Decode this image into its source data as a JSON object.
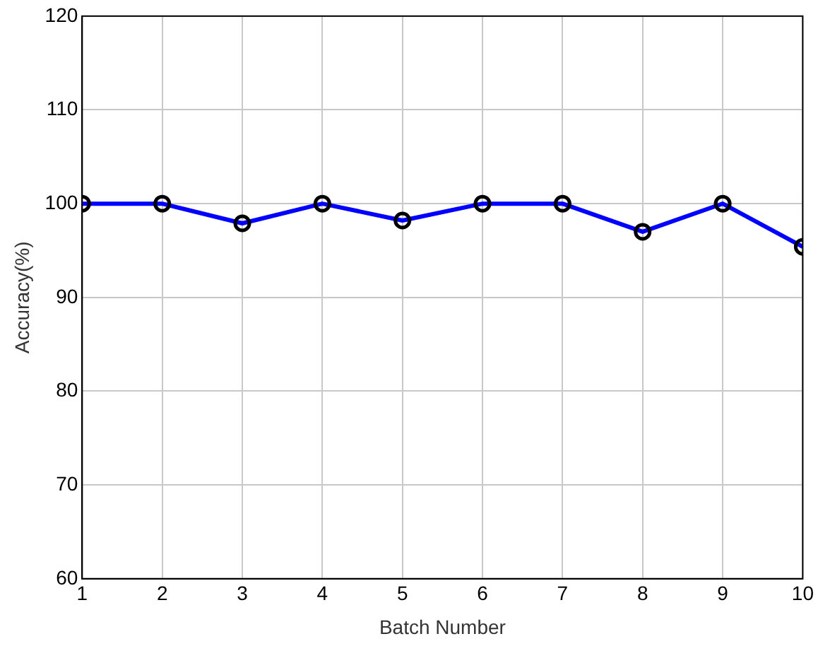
{
  "chart_data": {
    "type": "line",
    "xlabel": "Batch Number",
    "ylabel": "Accuracy(%)",
    "x": [
      1,
      2,
      3,
      4,
      5,
      6,
      7,
      8,
      9,
      10
    ],
    "series": [
      {
        "color": "#0000ff",
        "values": [
          100,
          100,
          97.9,
          100,
          98.2,
          100,
          100,
          97,
          100,
          95.4
        ]
      }
    ],
    "xlim": [
      1,
      10
    ],
    "xticks": [
      1,
      2,
      3,
      4,
      5,
      6,
      7,
      8,
      9,
      10
    ],
    "ylim": [
      60,
      120
    ],
    "yticks": [
      60,
      70,
      80,
      90,
      100,
      110,
      120
    ],
    "grid": true,
    "legend": false,
    "marker": "circle",
    "line_style": "solid"
  }
}
